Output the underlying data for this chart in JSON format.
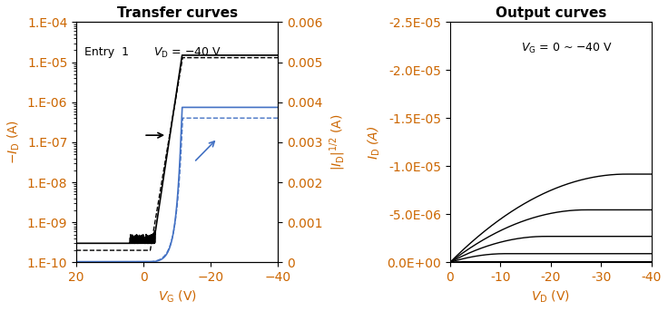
{
  "title_left": "Transfer curves",
  "title_right": "Output curves",
  "left_xlabel": "$V_\\mathrm{G}$ (V)",
  "left_ylabel_left": "$-I_\\mathrm{D}$ (A)",
  "left_ylabel_right": "$|I_\\mathrm{D}|^{1/2}$ (A)",
  "right_xlabel": "$V_\\mathrm{D}$ (V)",
  "right_ylabel": "$I_\\mathrm{D}$ (A)",
  "left_annotation_entry": "Entry  1",
  "left_annotation_vd": "$V_\\mathrm{D}$ = −40 V",
  "right_annotation_vg": "$V_\\mathrm{G}$ = 0 ~ −40 V",
  "text_color": "#CC6600",
  "curve_color_black": "#000000",
  "curve_color_blue": "#4472C4"
}
